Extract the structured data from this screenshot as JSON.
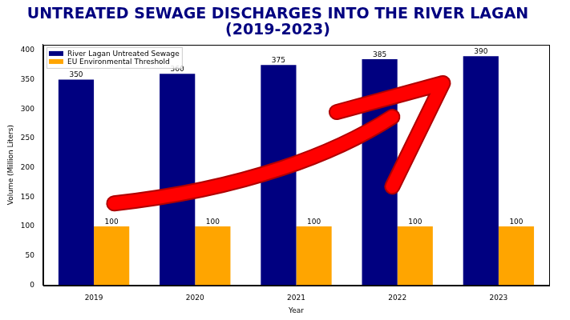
{
  "chart_data": {
    "type": "bar",
    "title": "UNTREATED SEWAGE DISCHARGES INTO THE RIVER LAGAN\n(2019-2023)",
    "x_label": "Year",
    "y_label": "Volume (Million Liters)",
    "categories": [
      "2019",
      "2020",
      "2021",
      "2022",
      "2023"
    ],
    "series": [
      {
        "name": "River Lagan Untreated Sewage",
        "color": "#000080",
        "values": [
          350,
          360,
          375,
          385,
          390
        ]
      },
      {
        "name": "EU Environmental Threshold",
        "color": "#ffa500",
        "values": [
          100,
          100,
          100,
          100,
          100
        ]
      }
    ],
    "ylim": [
      0,
      409.5
    ],
    "yticks": [
      0,
      50,
      100,
      150,
      200,
      250,
      300,
      350,
      400
    ],
    "grid": false,
    "legend": "upper left",
    "data_labels": true
  }
}
